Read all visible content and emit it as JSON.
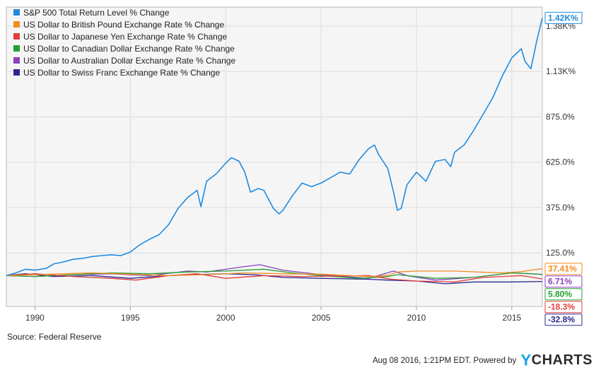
{
  "chart_data": {
    "type": "line",
    "title": "",
    "xlabel": "",
    "ylabel": "",
    "x_ticks": [
      "1990",
      "1995",
      "2000",
      "2005",
      "2010",
      "2015"
    ],
    "x_tick_values": [
      1990,
      1995,
      2000,
      2005,
      2010,
      2015
    ],
    "xlim": [
      1988.5,
      2016.6
    ],
    "y_ticks": [
      "125.0%",
      "375.0%",
      "625.0%",
      "875.0%",
      "1.13K%",
      "1.38K%"
    ],
    "y_tick_values": [
      125,
      375,
      625,
      875,
      1125,
      1375
    ],
    "ylim": [
      -170,
      1480
    ],
    "grid": true,
    "legend_position": "top-left",
    "series": [
      {
        "name": "S&P 500 Total Return Level % Change",
        "color": "#1f8be0",
        "end_label": "1.42K%",
        "x": [
          1988.5,
          1989.0,
          1989.5,
          1990.0,
          1990.6,
          1991.0,
          1991.5,
          1992.0,
          1992.5,
          1993.0,
          1993.5,
          1994.0,
          1994.5,
          1995.0,
          1995.5,
          1996.0,
          1996.5,
          1997.0,
          1997.5,
          1998.0,
          1998.5,
          1998.7,
          1999.0,
          1999.5,
          2000.0,
          2000.3,
          2000.7,
          2001.0,
          2001.3,
          2001.7,
          2002.0,
          2002.5,
          2002.8,
          2003.0,
          2003.5,
          2004.0,
          2004.5,
          2005.0,
          2005.5,
          2006.0,
          2006.5,
          2007.0,
          2007.5,
          2007.8,
          2008.0,
          2008.5,
          2008.8,
          2009.0,
          2009.2,
          2009.5,
          2010.0,
          2010.5,
          2011.0,
          2011.5,
          2011.8,
          2012.0,
          2012.5,
          2013.0,
          2013.5,
          2014.0,
          2014.5,
          2015.0,
          2015.5,
          2015.7,
          2016.0,
          2016.3,
          2016.6
        ],
        "values": [
          0,
          15,
          35,
          30,
          40,
          65,
          75,
          90,
          95,
          105,
          110,
          115,
          110,
          130,
          170,
          200,
          225,
          280,
          370,
          430,
          470,
          380,
          520,
          560,
          620,
          650,
          630,
          570,
          460,
          480,
          470,
          370,
          340,
          360,
          440,
          510,
          490,
          510,
          540,
          570,
          560,
          640,
          700,
          720,
          670,
          590,
          460,
          360,
          370,
          500,
          570,
          520,
          630,
          640,
          600,
          680,
          720,
          800,
          890,
          980,
          1100,
          1200,
          1250,
          1180,
          1140,
          1290,
          1420
        ]
      },
      {
        "name": "US Dollar to British Pound Exchange Rate % Change",
        "color": "#f28d1e",
        "end_label": "37.41%",
        "x": [
          1988.5,
          1990.0,
          1991.5,
          1993.0,
          1995.0,
          1997.0,
          1999.0,
          2001.0,
          2003.0,
          2005.0,
          2007.5,
          2008.5,
          2009.0,
          2010.0,
          2012.0,
          2014.5,
          2015.5,
          2016.0,
          2016.6
        ],
        "values": [
          0,
          5,
          10,
          15,
          8,
          0,
          5,
          15,
          10,
          8,
          -5,
          0,
          20,
          25,
          25,
          15,
          22,
          30,
          37.41
        ]
      },
      {
        "name": "US Dollar to Japanese Yen Exchange Rate % Change",
        "color": "#e43c3c",
        "end_label": "-18.3%",
        "x": [
          1988.5,
          1990.0,
          1992.0,
          1994.0,
          1995.3,
          1997.0,
          1998.5,
          2000.0,
          2002.0,
          2004.0,
          2007.5,
          2008.7,
          2010.0,
          2012.0,
          2013.5,
          2015.5,
          2016.6
        ],
        "values": [
          0,
          10,
          -5,
          -15,
          -25,
          0,
          10,
          -15,
          0,
          -5,
          0,
          -20,
          -30,
          -35,
          -10,
          0,
          -18.3
        ]
      },
      {
        "name": "US Dollar to Canadian Dollar Exchange Rate % Change",
        "color": "#24a02e",
        "end_label": "5.80%",
        "x": [
          1988.5,
          1990.0,
          1992.0,
          1994.0,
          1996.0,
          1998.0,
          2000.0,
          2002.0,
          2003.5,
          2005.0,
          2007.0,
          2008.5,
          2009.0,
          2011.0,
          2013.0,
          2015.0,
          2016.0,
          2016.6
        ],
        "values": [
          0,
          -5,
          5,
          15,
          10,
          20,
          25,
          35,
          15,
          0,
          -15,
          -5,
          5,
          -15,
          -10,
          15,
          10,
          5.8
        ]
      },
      {
        "name": "US Dollar to Australian Dollar Exchange Rate % Change",
        "color": "#8b3fbf",
        "end_label": "6.71%",
        "x": [
          1988.5,
          1990.0,
          1992.0,
          1994.0,
          1996.0,
          1998.0,
          1999.0,
          2001.0,
          2001.8,
          2003.0,
          2005.0,
          2007.5,
          2008.8,
          2009.5,
          2011.0,
          2013.0,
          2015.0,
          2016.0,
          2016.6
        ],
        "values": [
          0,
          -5,
          5,
          10,
          0,
          25,
          20,
          50,
          60,
          30,
          5,
          -15,
          25,
          0,
          -25,
          -10,
          15,
          10,
          6.71
        ]
      },
      {
        "name": "US Dollar to Swiss Franc Exchange Rate % Change",
        "color": "#2a2a8f",
        "end_label": "-32.8%",
        "x": [
          1988.5,
          1989.5,
          1991.0,
          1993.0,
          1995.0,
          1997.0,
          2000.0,
          2001.5,
          2003.0,
          2005.0,
          2007.5,
          2008.5,
          2010.0,
          2011.5,
          2013.0,
          2015.0,
          2016.6
        ],
        "values": [
          0,
          10,
          -5,
          0,
          -15,
          0,
          10,
          5,
          -10,
          -15,
          -20,
          -25,
          -30,
          -45,
          -35,
          -35,
          -32.8
        ]
      }
    ]
  },
  "source": "Source: Federal Reserve",
  "footer": {
    "timestamp": "Aug 08 2016, 1:21PM EDT.",
    "powered_by": "Powered by",
    "brand_y": "Y",
    "brand_rest": "CHARTS"
  }
}
